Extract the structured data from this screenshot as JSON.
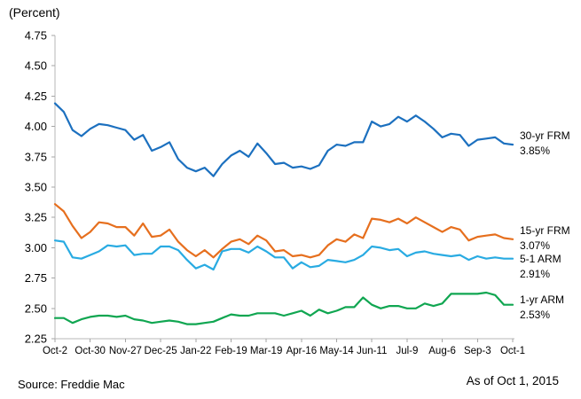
{
  "header": {
    "unit_label": "(Percent)"
  },
  "footer": {
    "source": "Source: Freddie Mac",
    "as_of": "As of Oct 1, 2015"
  },
  "colors": {
    "axis": "#b7b7b7",
    "tick": "#a6a6a6",
    "series_30yr": "#1c70bf",
    "series_15yr": "#e66f1e",
    "series_51arm": "#29abe2",
    "series_1yr": "#10a651"
  },
  "chart_data": {
    "type": "line",
    "title": "(Percent)",
    "xlabel": "",
    "ylabel": "Percent",
    "ylim": [
      2.25,
      4.75
    ],
    "y_tick_step": 0.25,
    "grid": "off",
    "legend_position": "right-end-labels",
    "x_tick_labels": [
      "Oct-2",
      "Oct-30",
      "Nov-27",
      "Dec-25",
      "Jan-22",
      "Feb-19",
      "Mar-19",
      "Apr-16",
      "May-14",
      "Jun-11",
      "Jul-9",
      "Aug-6",
      "Sep-3",
      "Oct-1"
    ],
    "x_tick_every": 4,
    "x": [
      "Oct-2",
      "Oct-9",
      "Oct-16",
      "Oct-23",
      "Oct-30",
      "Nov-6",
      "Nov-13",
      "Nov-20",
      "Nov-27",
      "Dec-4",
      "Dec-11",
      "Dec-18",
      "Dec-25",
      "Jan-1",
      "Jan-8",
      "Jan-15",
      "Jan-22",
      "Jan-29",
      "Feb-5",
      "Feb-12",
      "Feb-19",
      "Feb-26",
      "Mar-5",
      "Mar-12",
      "Mar-19",
      "Mar-26",
      "Apr-2",
      "Apr-9",
      "Apr-16",
      "Apr-23",
      "Apr-30",
      "May-7",
      "May-14",
      "May-21",
      "May-28",
      "Jun-4",
      "Jun-11",
      "Jun-18",
      "Jun-25",
      "Jul-2",
      "Jul-9",
      "Jul-16",
      "Jul-23",
      "Jul-30",
      "Aug-6",
      "Aug-13",
      "Aug-20",
      "Aug-27",
      "Sep-3",
      "Sep-10",
      "Sep-17",
      "Sep-24",
      "Oct-1"
    ],
    "series": [
      {
        "name": "30-yr FRM",
        "end_label": "30-yr FRM",
        "end_value": "3.85%",
        "color": "#1c70bf",
        "values": [
          4.19,
          4.12,
          3.97,
          3.92,
          3.98,
          4.02,
          4.01,
          3.99,
          3.97,
          3.89,
          3.93,
          3.8,
          3.83,
          3.87,
          3.73,
          3.66,
          3.63,
          3.66,
          3.59,
          3.69,
          3.76,
          3.8,
          3.75,
          3.86,
          3.78,
          3.69,
          3.7,
          3.66,
          3.67,
          3.65,
          3.68,
          3.8,
          3.85,
          3.84,
          3.87,
          3.87,
          4.04,
          4.0,
          4.02,
          4.08,
          4.04,
          4.09,
          4.04,
          3.98,
          3.91,
          3.94,
          3.93,
          3.84,
          3.89,
          3.9,
          3.91,
          3.86,
          3.85
        ]
      },
      {
        "name": "15-yr FRM",
        "end_label": "15-yr FRM",
        "end_value": "3.07%",
        "color": "#e66f1e",
        "values": [
          3.36,
          3.3,
          3.18,
          3.08,
          3.13,
          3.21,
          3.2,
          3.17,
          3.17,
          3.1,
          3.2,
          3.09,
          3.1,
          3.15,
          3.05,
          2.98,
          2.93,
          2.98,
          2.92,
          2.99,
          3.05,
          3.07,
          3.03,
          3.1,
          3.06,
          2.97,
          2.98,
          2.93,
          2.94,
          2.92,
          2.94,
          3.02,
          3.07,
          3.05,
          3.11,
          3.08,
          3.24,
          3.23,
          3.21,
          3.24,
          3.2,
          3.25,
          3.21,
          3.17,
          3.13,
          3.17,
          3.15,
          3.06,
          3.09,
          3.1,
          3.11,
          3.08,
          3.07
        ]
      },
      {
        "name": "5-1 ARM",
        "end_label": "5-1 ARM",
        "end_value": "2.91%",
        "color": "#29abe2",
        "values": [
          3.06,
          3.05,
          2.92,
          2.91,
          2.94,
          2.97,
          3.02,
          3.01,
          3.02,
          2.94,
          2.95,
          2.95,
          3.01,
          3.01,
          2.98,
          2.9,
          2.83,
          2.86,
          2.82,
          2.97,
          2.99,
          2.99,
          2.96,
          3.01,
          2.97,
          2.92,
          2.92,
          2.83,
          2.88,
          2.84,
          2.85,
          2.9,
          2.89,
          2.88,
          2.9,
          2.94,
          3.01,
          3.0,
          2.98,
          2.99,
          2.93,
          2.96,
          2.97,
          2.95,
          2.94,
          2.93,
          2.94,
          2.9,
          2.93,
          2.91,
          2.92,
          2.91,
          2.91
        ]
      },
      {
        "name": "1-yr ARM",
        "end_label": "1-yr ARM",
        "end_value": "2.53%",
        "color": "#10a651",
        "values": [
          2.42,
          2.42,
          2.38,
          2.41,
          2.43,
          2.44,
          2.44,
          2.43,
          2.44,
          2.41,
          2.4,
          2.38,
          2.39,
          2.4,
          2.39,
          2.37,
          2.37,
          2.38,
          2.39,
          2.42,
          2.45,
          2.44,
          2.44,
          2.46,
          2.46,
          2.46,
          2.44,
          2.46,
          2.48,
          2.44,
          2.49,
          2.46,
          2.48,
          2.51,
          2.51,
          2.59,
          2.53,
          2.5,
          2.52,
          2.52,
          2.5,
          2.5,
          2.54,
          2.52,
          2.54,
          2.62,
          2.62,
          2.62,
          2.62,
          2.63,
          2.61,
          2.53,
          2.53
        ]
      }
    ]
  }
}
